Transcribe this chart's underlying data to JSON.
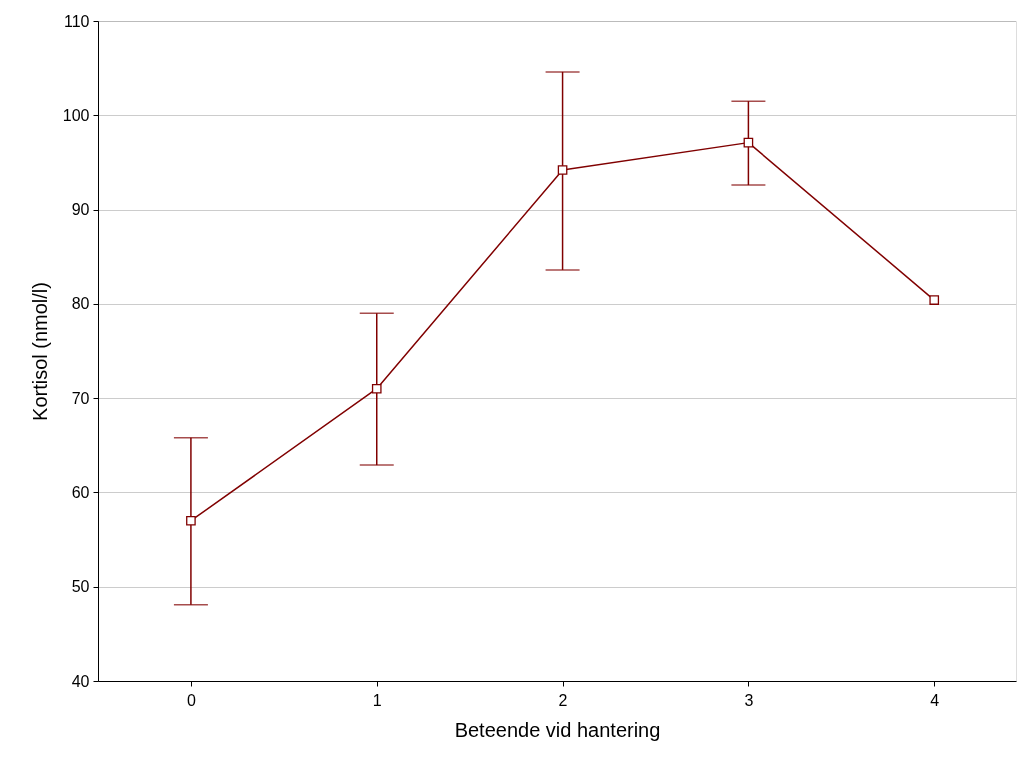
{
  "chart_data": {
    "type": "line",
    "xlabel": "Beteende vid hantering",
    "ylabel": "Kortisol (nmol/l)",
    "categories": [
      "0",
      "1",
      "2",
      "3",
      "4"
    ],
    "series": [
      {
        "color": "#800000",
        "values": [
          57.0,
          71.0,
          94.2,
          97.1,
          80.4
        ],
        "errors": [
          [
            48.1,
            65.8
          ],
          [
            62.9,
            79.0
          ],
          [
            83.6,
            104.6
          ],
          [
            92.6,
            101.5
          ],
          null
        ]
      }
    ],
    "ylim": [
      40,
      110
    ],
    "yticks": [
      40,
      50,
      60,
      70,
      80,
      90,
      100,
      110
    ],
    "grid": "y",
    "marker": "square",
    "line_style": "solid"
  }
}
